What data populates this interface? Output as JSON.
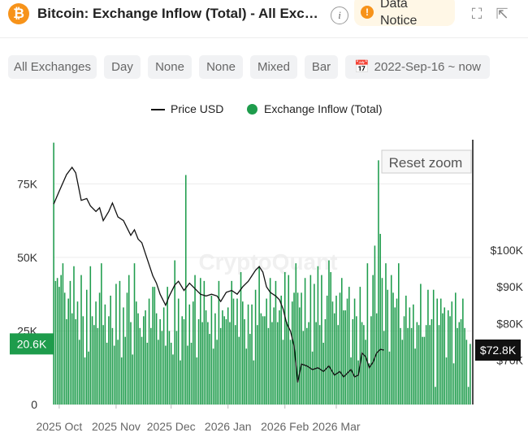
{
  "header": {
    "coin_symbol": "₿",
    "title": "Bitcoin: Exchange Inflow (Total) - All Exchanges",
    "info_icon": "i",
    "notice_label": "Data Notice",
    "notice_icon": "!",
    "expand_icon": "⛶",
    "share_icon": "⇱"
  },
  "filters": [
    {
      "label": "All Exchanges"
    },
    {
      "label": "Day"
    },
    {
      "label": "None"
    },
    {
      "label": "None"
    },
    {
      "label": "Mixed"
    },
    {
      "label": "Bar"
    },
    {
      "label": "2022-Sep-16 ~ now",
      "icon": "calendar-icon"
    }
  ],
  "legend": {
    "price_label": "Price USD",
    "inflow_label": "Exchange Inflow (Total)"
  },
  "reset_zoom": "Reset zoom",
  "watermark": "CryptoQuant",
  "colors": {
    "bar": "#1e9c4c",
    "price_line": "#111111",
    "accent": "#f7931a"
  },
  "chart_data": {
    "type": "bar",
    "title": "Bitcoin: Exchange Inflow (Total) - All Exchanges",
    "x_start": "2025-09-28",
    "x_ticks": [
      {
        "label": "2025 Oct",
        "date": "2025-10-01"
      },
      {
        "label": "2025 Nov",
        "date": "2025-11-01"
      },
      {
        "label": "2025 Dec",
        "date": "2025-12-01"
      },
      {
        "label": "2026 Jan",
        "date": "2026-01-01"
      },
      {
        "label": "2026 Feb",
        "date": "2026-02-01"
      },
      {
        "label": "2026 Mar",
        "date": "2026-03-01"
      }
    ],
    "y_left": {
      "ticks": [
        "0",
        "25K",
        "50K",
        "75K"
      ],
      "tick_values": [
        0,
        25000,
        50000,
        75000
      ],
      "range": [
        0,
        90000
      ]
    },
    "y_right": {
      "ticks": [
        "$70K",
        "$80K",
        "$90K",
        "$100K"
      ],
      "tick_values": [
        70000,
        80000,
        90000,
        100000
      ],
      "range": [
        58000,
        130000
      ]
    },
    "current_inflow_label": "20.6K",
    "current_inflow": 20600,
    "current_price_label": "$72.8K",
    "current_price": 72800,
    "series": [
      {
        "name": "Exchange Inflow (Total)",
        "kind": "bar",
        "values": [
          89000,
          42000,
          43000,
          40000,
          44000,
          48000,
          38000,
          29000,
          36000,
          42000,
          31000,
          47000,
          29000,
          35000,
          22000,
          44000,
          30000,
          16000,
          39000,
          18000,
          47000,
          30000,
          27000,
          35000,
          26000,
          38000,
          48000,
          27000,
          34000,
          21000,
          30000,
          37000,
          26000,
          20000,
          41000,
          22000,
          42000,
          16000,
          33000,
          23000,
          38000,
          44000,
          28000,
          17000,
          48000,
          35000,
          31000,
          26000,
          23000,
          30000,
          32000,
          21000,
          36000,
          26000,
          40000,
          40000,
          31000,
          22000,
          29000,
          25000,
          33000,
          20000,
          40000,
          25000,
          21000,
          17000,
          49000,
          25000,
          36000,
          15000,
          30000,
          29000,
          78000,
          20000,
          34000,
          21000,
          35000,
          44000,
          16000,
          29000,
          43000,
          28000,
          42000,
          32000,
          28000,
          24000,
          37000,
          19000,
          31000,
          22000,
          42000,
          26000,
          32000,
          30000,
          29000,
          33000,
          28000,
          42000,
          36000,
          27000,
          36000,
          23000,
          45000,
          35000,
          29000,
          19000,
          34000,
          24000,
          34000,
          15000,
          39000,
          27000,
          47000,
          31000,
          30000,
          30000,
          36000,
          26000,
          43000,
          28000,
          33000,
          42000,
          28000,
          32000,
          37000,
          22000,
          45000,
          28000,
          44000,
          22000,
          35000,
          38000,
          48000,
          38000,
          33000,
          38000,
          25000,
          43000,
          26000,
          28000,
          44000,
          18000,
          41000,
          28000,
          47000,
          27000,
          44000,
          21000,
          29000,
          37000,
          49000,
          45000,
          35000,
          31000,
          37000,
          27000,
          38000,
          43000,
          32000,
          32000,
          36000,
          40000,
          16000,
          29000,
          36000,
          30000,
          15000,
          40000,
          28000,
          27000,
          22000,
          48000,
          14000,
          30000,
          44000,
          54000,
          31000,
          83000,
          58000,
          43000,
          25000,
          48000,
          39000,
          18000,
          44000,
          38000,
          33000,
          36000,
          48000,
          26000,
          22000,
          30000,
          37000,
          26000,
          33000,
          26000,
          34000,
          19000,
          28000,
          27000,
          41000,
          23000,
          23000,
          27000,
          39000,
          27000,
          29000,
          39000,
          6000,
          36000,
          27000,
          36000,
          31000,
          33000,
          16000,
          32000,
          30000,
          35000,
          14000,
          38000,
          26000,
          28000,
          29000,
          36000,
          26000,
          22000,
          6000,
          20600
        ]
      },
      {
        "name": "Price USD",
        "kind": "line",
        "points": [
          {
            "day": 0,
            "v": 112500
          },
          {
            "day": 3,
            "v": 116000
          },
          {
            "day": 7,
            "v": 120500
          },
          {
            "day": 10,
            "v": 122500
          },
          {
            "day": 12,
            "v": 121000
          },
          {
            "day": 13,
            "v": 118500
          },
          {
            "day": 15,
            "v": 113500
          },
          {
            "day": 18,
            "v": 114000
          },
          {
            "day": 20,
            "v": 112000
          },
          {
            "day": 23,
            "v": 110500
          },
          {
            "day": 25,
            "v": 111500
          },
          {
            "day": 27,
            "v": 108000
          },
          {
            "day": 30,
            "v": 110500
          },
          {
            "day": 32,
            "v": 112800
          },
          {
            "day": 35,
            "v": 109000
          },
          {
            "day": 38,
            "v": 108000
          },
          {
            "day": 40,
            "v": 106000
          },
          {
            "day": 42,
            "v": 104000
          },
          {
            "day": 44,
            "v": 105500
          },
          {
            "day": 46,
            "v": 103000
          },
          {
            "day": 48,
            "v": 102000
          },
          {
            "day": 50,
            "v": 99000
          },
          {
            "day": 52,
            "v": 96000
          },
          {
            "day": 54,
            "v": 93000
          },
          {
            "day": 56,
            "v": 91000
          },
          {
            "day": 58,
            "v": 88000
          },
          {
            "day": 61,
            "v": 85000
          },
          {
            "day": 63,
            "v": 87500
          },
          {
            "day": 66,
            "v": 90500
          },
          {
            "day": 68,
            "v": 91500
          },
          {
            "day": 71,
            "v": 89000
          },
          {
            "day": 74,
            "v": 91000
          },
          {
            "day": 77,
            "v": 89500
          },
          {
            "day": 80,
            "v": 88000
          },
          {
            "day": 83,
            "v": 87500
          },
          {
            "day": 86,
            "v": 88000
          },
          {
            "day": 89,
            "v": 87500
          },
          {
            "day": 91,
            "v": 86000
          },
          {
            "day": 94,
            "v": 88500
          },
          {
            "day": 97,
            "v": 89000
          },
          {
            "day": 100,
            "v": 88000
          },
          {
            "day": 103,
            "v": 90000
          },
          {
            "day": 106,
            "v": 91500
          },
          {
            "day": 108,
            "v": 93000
          },
          {
            "day": 110,
            "v": 94500
          },
          {
            "day": 112,
            "v": 95500
          },
          {
            "day": 114,
            "v": 94000
          },
          {
            "day": 116,
            "v": 90000
          },
          {
            "day": 118,
            "v": 88500
          },
          {
            "day": 121,
            "v": 87500
          },
          {
            "day": 123,
            "v": 86500
          },
          {
            "day": 125,
            "v": 84000
          },
          {
            "day": 127,
            "v": 80000
          },
          {
            "day": 129,
            "v": 78000
          },
          {
            "day": 131,
            "v": 74000
          },
          {
            "day": 133,
            "v": 64000
          },
          {
            "day": 135,
            "v": 69000
          },
          {
            "day": 138,
            "v": 68500
          },
          {
            "day": 141,
            "v": 67500
          },
          {
            "day": 144,
            "v": 68000
          },
          {
            "day": 147,
            "v": 67000
          },
          {
            "day": 150,
            "v": 68500
          },
          {
            "day": 153,
            "v": 66000
          },
          {
            "day": 156,
            "v": 67000
          },
          {
            "day": 158,
            "v": 65500
          },
          {
            "day": 160,
            "v": 66500
          },
          {
            "day": 162,
            "v": 67500
          },
          {
            "day": 164,
            "v": 65500
          },
          {
            "day": 166,
            "v": 66000
          },
          {
            "day": 168,
            "v": 72000
          },
          {
            "day": 170,
            "v": 71000
          },
          {
            "day": 172,
            "v": 68000
          },
          {
            "day": 174,
            "v": 69500
          },
          {
            "day": 176,
            "v": 72000
          },
          {
            "day": 178,
            "v": 73000
          },
          {
            "day": 180,
            "v": 72800
          }
        ]
      }
    ]
  }
}
